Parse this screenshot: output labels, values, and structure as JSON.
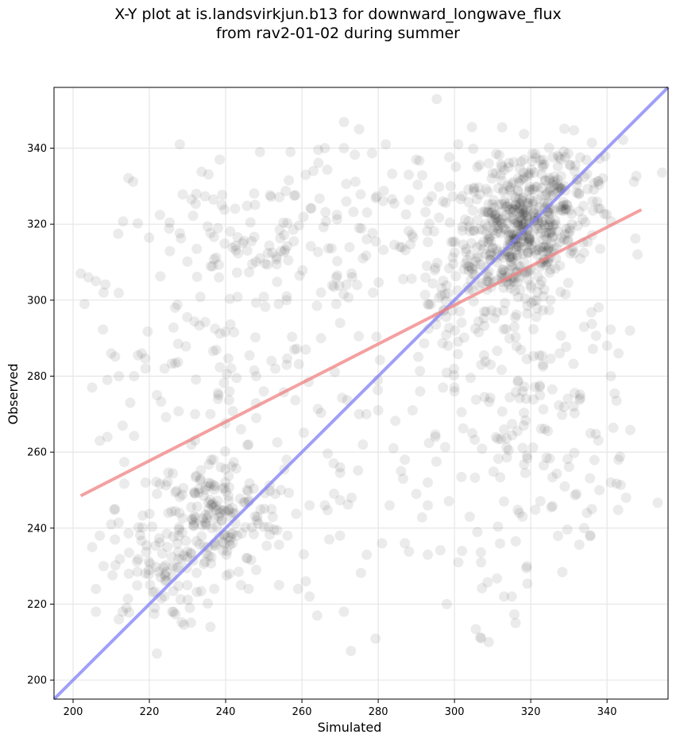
{
  "chart_data": {
    "type": "scatter",
    "title": "X-Y plot at is.landsvirkjun.b13 for downward_longwave_flux",
    "subtitle": "from rav2-01-02 during summer",
    "xlabel": "Simulated",
    "ylabel": "Observed",
    "xlim": [
      195,
      356
    ],
    "ylim": [
      195,
      356
    ],
    "xticks": [
      200,
      220,
      240,
      260,
      280,
      300,
      320,
      340
    ],
    "yticks": [
      200,
      220,
      240,
      260,
      280,
      300,
      320,
      340
    ],
    "grid": true,
    "marker_color": "#000000",
    "fit_line": {
      "x": [
        202,
        349
      ],
      "y": [
        248.5,
        323.8
      ],
      "color": "#f08080"
    },
    "identity_line": {
      "x": [
        195,
        356
      ],
      "y": [
        195,
        356
      ],
      "color": "#7f7ff5"
    },
    "clusters": [
      {
        "cx": 316,
        "cy": 316,
        "sx": 8,
        "sy": 9,
        "n": 420
      },
      {
        "cx": 326,
        "cy": 328,
        "sx": 9,
        "sy": 7,
        "n": 160
      },
      {
        "cx": 237,
        "cy": 243,
        "sx": 9,
        "sy": 8,
        "n": 170
      },
      {
        "cx": 222,
        "cy": 228,
        "sx": 6,
        "sy": 7,
        "n": 70
      },
      {
        "cx": 250,
        "cy": 316,
        "sx": 17,
        "sy": 11,
        "n": 120
      },
      {
        "cx": 235,
        "cy": 286,
        "sx": 14,
        "sy": 15,
        "n": 70
      },
      {
        "cx": 322,
        "cy": 267,
        "sx": 12,
        "sy": 19,
        "n": 150
      },
      {
        "cx": 275,
        "cy": 260,
        "sx": 22,
        "sy": 22,
        "n": 60
      },
      {
        "cx": 298,
        "cy": 300,
        "sx": 5,
        "sy": 8,
        "n": 40
      },
      {
        "cx": 285,
        "cy": 318,
        "sx": 12,
        "sy": 12,
        "n": 50
      }
    ],
    "points": [
      [
        202,
        307
      ],
      [
        204,
        306
      ],
      [
        206,
        305
      ],
      [
        203,
        299
      ],
      [
        208,
        302
      ],
      [
        205,
        277
      ],
      [
        207,
        263
      ],
      [
        209,
        264
      ],
      [
        210,
        286
      ],
      [
        209,
        279
      ],
      [
        212,
        280
      ],
      [
        213,
        218
      ],
      [
        214,
        219
      ],
      [
        212,
        216
      ],
      [
        206,
        218
      ],
      [
        206,
        224
      ],
      [
        205,
        235
      ],
      [
        207,
        238
      ],
      [
        208,
        230
      ],
      [
        222,
        207
      ],
      [
        226,
        218
      ],
      [
        236,
        214
      ],
      [
        237,
        224
      ],
      [
        241,
        228
      ],
      [
        275,
        345
      ],
      [
        266,
        340
      ],
      [
        271,
        340
      ],
      [
        257,
        339
      ],
      [
        249,
        339
      ],
      [
        228,
        341
      ],
      [
        282,
        341
      ],
      [
        301,
        341
      ],
      [
        290,
        337
      ],
      [
        288,
        333
      ],
      [
        263,
        334
      ],
      [
        261,
        333
      ],
      [
        309,
        336
      ],
      [
        306,
        335
      ],
      [
        299,
        330
      ],
      [
        297,
        326
      ],
      [
        293,
        326
      ],
      [
        262,
        222
      ],
      [
        271,
        218
      ],
      [
        259,
        224
      ],
      [
        264,
        217
      ],
      [
        307,
        211
      ],
      [
        309,
        210
      ],
      [
        316,
        215
      ],
      [
        313,
        222
      ],
      [
        315,
        222
      ],
      [
        298,
        220
      ],
      [
        319,
        230
      ],
      [
        334,
        240
      ],
      [
        332,
        249
      ],
      [
        338,
        250
      ],
      [
        343,
        258
      ],
      [
        348,
        312
      ],
      [
        346,
        292
      ],
      [
        340,
        288
      ],
      [
        343,
        286
      ],
      [
        341,
        280
      ],
      [
        345,
        248
      ],
      [
        341,
        252
      ],
      [
        336,
        245
      ],
      [
        317,
        244
      ],
      [
        313,
        247
      ],
      [
        304,
        243
      ],
      [
        306,
        239
      ],
      [
        307,
        231
      ],
      [
        302,
        234
      ],
      [
        301,
        231
      ],
      [
        293,
        233
      ],
      [
        287,
        236
      ],
      [
        281,
        236
      ],
      [
        293,
        246
      ],
      [
        283,
        246
      ],
      [
        290,
        249
      ],
      [
        286,
        255
      ],
      [
        293,
        252
      ],
      [
        295,
        264
      ],
      [
        289,
        271
      ],
      [
        297,
        277
      ],
      [
        300,
        277
      ],
      [
        300,
        276
      ],
      [
        291,
        276
      ],
      [
        280,
        271
      ],
      [
        275,
        270
      ],
      [
        276,
        262
      ],
      [
        284,
        261
      ],
      [
        287,
        258
      ],
      [
        270,
        256
      ],
      [
        256,
        258
      ],
      [
        253,
        249
      ],
      [
        252,
        245
      ],
      [
        262,
        246
      ],
      [
        266,
        246
      ],
      [
        273,
        248
      ],
      [
        270,
        238
      ],
      [
        277,
        233
      ],
      [
        244,
        225
      ],
      [
        246,
        224
      ],
      [
        254,
        225
      ],
      [
        261,
        226
      ],
      [
        248,
        229
      ],
      [
        243,
        238
      ],
      [
        222,
        275
      ],
      [
        224,
        282
      ],
      [
        218,
        286
      ],
      [
        219,
        282
      ],
      [
        216,
        280
      ],
      [
        215,
        273
      ],
      [
        213,
        267
      ],
      [
        211,
        237
      ],
      [
        210,
        241
      ],
      [
        211,
        245
      ],
      [
        219,
        252
      ],
      [
        222,
        249
      ],
      [
        225,
        244
      ],
      [
        231,
        262
      ],
      [
        232,
        270
      ],
      [
        236,
        270
      ],
      [
        241,
        276
      ],
      [
        244,
        266
      ],
      [
        246,
        262
      ],
      [
        248,
        269
      ],
      [
        250,
        276
      ],
      [
        248,
        280
      ],
      [
        252,
        284
      ],
      [
        256,
        283
      ],
      [
        258,
        287
      ],
      [
        261,
        287
      ],
      [
        265,
        290
      ],
      [
        270,
        294
      ],
      [
        269,
        299
      ],
      [
        256,
        300
      ],
      [
        256,
        301
      ],
      [
        265,
        302
      ],
      [
        269,
        306
      ],
      [
        273,
        307
      ],
      [
        276,
        311
      ],
      [
        277,
        316
      ],
      [
        275,
        319
      ]
    ]
  }
}
